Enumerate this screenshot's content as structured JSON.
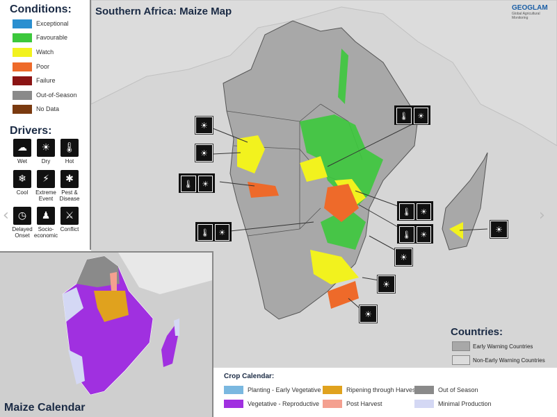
{
  "conditions": {
    "title": "Conditions:",
    "items": [
      {
        "label": "Exceptional",
        "color": "#2a8fd0"
      },
      {
        "label": "Favourable",
        "color": "#3cc83c"
      },
      {
        "label": "Watch",
        "color": "#f2f21e"
      },
      {
        "label": "Poor",
        "color": "#ee6a2a"
      },
      {
        "label": "Failure",
        "color": "#8b1414"
      },
      {
        "label": "Out-of-Season",
        "color": "#8a8a8a"
      },
      {
        "label": "No Data",
        "color": "#7a3a10"
      }
    ]
  },
  "drivers": {
    "title": "Drivers:",
    "items": [
      {
        "label": "Wet",
        "icon": "rain-cloud-icon",
        "glyph": "☁"
      },
      {
        "label": "Dry",
        "icon": "dry-ground-icon",
        "glyph": "☀"
      },
      {
        "label": "Hot",
        "icon": "thermometer-icon",
        "glyph": "🌡"
      },
      {
        "label": "Cool",
        "icon": "snowflake-icon",
        "glyph": "❄"
      },
      {
        "label": "Extreme Event",
        "icon": "extreme-event-icon",
        "glyph": "⚡"
      },
      {
        "label": "Pest & Disease",
        "icon": "pest-icon",
        "glyph": "✱"
      },
      {
        "label": "Delayed Onset",
        "icon": "clock-icon",
        "glyph": "◷"
      },
      {
        "label": "Socio-economic",
        "icon": "people-icon",
        "glyph": "♟"
      },
      {
        "label": "Conflict",
        "icon": "conflict-icon",
        "glyph": "⚔"
      }
    ]
  },
  "map": {
    "title": "Southern Africa: Maize Map",
    "logo_text": "GEOGLAM",
    "logo_sub": "Global Agricultural Monitoring"
  },
  "inset": {
    "title": "Maize Calendar"
  },
  "countries": {
    "title": "Countries:",
    "items": [
      {
        "label": "Early Warning Countries",
        "color": "#a8a8a8"
      },
      {
        "label": "Non-Early Warning Countries",
        "color": "#dcdcdc"
      }
    ]
  },
  "crop_calendar": {
    "title": "Crop Calendar:",
    "items": [
      {
        "label": "Planting - Early Vegetative",
        "color": "#7ab8e0"
      },
      {
        "label": "Ripening through Harvest",
        "color": "#e0a21e"
      },
      {
        "label": "Out of Season",
        "color": "#8a8a8a"
      },
      {
        "label": "Vegetative - Reproductive",
        "color": "#a030e0"
      },
      {
        "label": "Post Harvest",
        "color": "#f4a090"
      },
      {
        "label": "Minimal Production",
        "color": "#d4d8f4"
      }
    ]
  },
  "colors": {
    "ocean": "#d6d6d6",
    "land_ew": "#a8a8a8",
    "land_nonew": "#dcdcdc",
    "heading": "#1a2a44"
  }
}
